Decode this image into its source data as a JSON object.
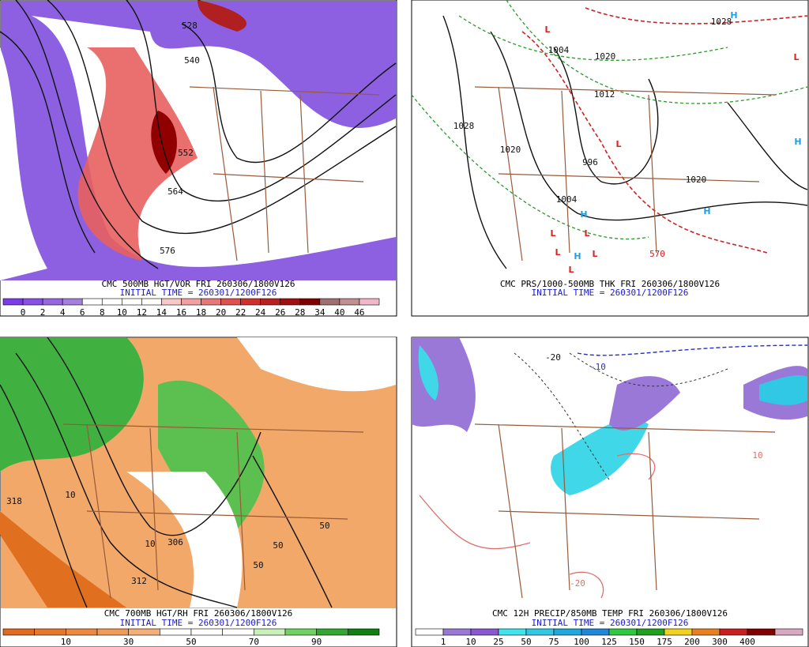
{
  "panels": [
    {
      "title": "CMC 500MB HGT/VOR FRI 260306/1800V126",
      "init": "INITIAL TIME = 260301/1200F126",
      "colorbar": {
        "labels": [
          0,
          2,
          4,
          6,
          8,
          10,
          12,
          14,
          16,
          18,
          20,
          22,
          24,
          26,
          28,
          34,
          40,
          46
        ],
        "colors": [
          "#7a3ce6",
          "#8a50e6",
          "#9866e2",
          "#a67ede",
          "#ffffff",
          "#ffffff",
          "#ffffff",
          "#ffffff",
          "#f8c8c8",
          "#f0a0a0",
          "#e87878",
          "#e05050",
          "#d03030",
          "#b82020",
          "#a01010",
          "#800000",
          "#a07070",
          "#c09090",
          "#f0b8c8"
        ]
      },
      "map_labels": [
        "528",
        "540",
        "552",
        "564",
        "576"
      ]
    },
    {
      "title": "CMC PRS/1000-500MB THK FRI 260306/1800V126",
      "init": "INITIAL TIME = 260301/1200F126",
      "map_labels": [
        "L",
        "L",
        "L",
        "L",
        "L",
        "L",
        "L",
        "L",
        "H",
        "H",
        "H",
        "H",
        "H",
        "1028",
        "1020",
        "1012",
        "1004",
        "996",
        "1020",
        "1004",
        "1028",
        "1020",
        "570"
      ]
    },
    {
      "title": "CMC 700MB HGT/RH FRI 260306/1800V126",
      "init": "INITIAL TIME = 260301/1200F126",
      "colorbar": {
        "labels": [
          10,
          30,
          50,
          70,
          90
        ],
        "colors": [
          "#e06a20",
          "#e6782c",
          "#ec8840",
          "#f09a58",
          "#f4b078",
          "#ffffff",
          "#ffffff",
          "#ffffff",
          "#c8f0b8",
          "#70d060",
          "#30a830",
          "#108010"
        ]
      },
      "map_labels": [
        "318",
        "312",
        "306",
        "50",
        "50",
        "50",
        "10",
        "10"
      ]
    },
    {
      "title": "CMC 12H PRECIP/850MB TEMP FRI 260306/1800V126",
      "init": "INITIAL TIME = 260301/1200F126",
      "colorbar": {
        "labels": [
          1,
          10,
          25,
          50,
          75,
          100,
          125,
          150,
          175,
          200,
          300,
          400
        ],
        "colors": [
          "#ffffff",
          "#9a78d8",
          "#8858d0",
          "#40e4ec",
          "#30c8e4",
          "#20a8dc",
          "#2088d8",
          "#30c840",
          "#20a020",
          "#f0d020",
          "#e88020",
          "#c82020",
          "#800000",
          "#d8a8c0"
        ]
      },
      "map_labels": [
        "-10",
        "-20",
        "10",
        "-20"
      ]
    }
  ]
}
